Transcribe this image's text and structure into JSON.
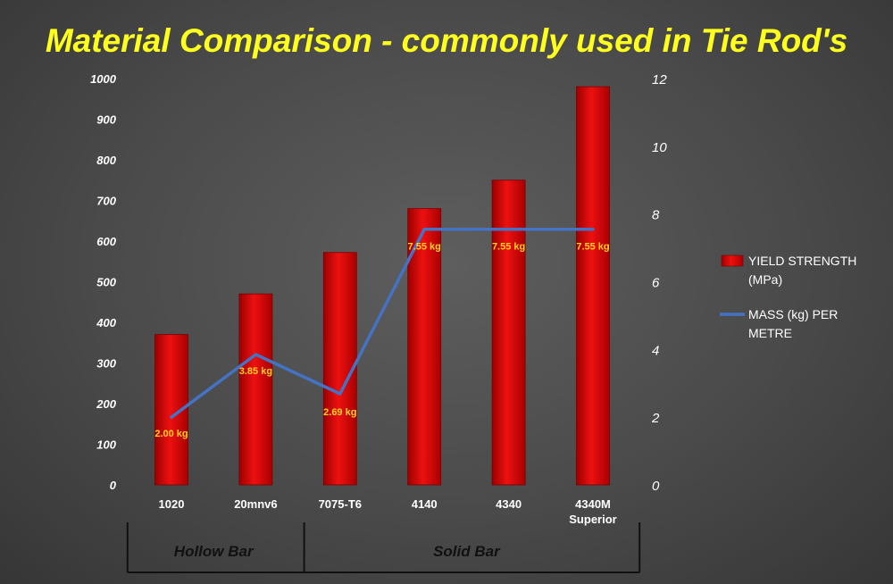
{
  "chart_data": {
    "type": "bar",
    "title": "Material Comparison - commonly used in Tie Rod's",
    "categories": [
      "1020",
      "20mnv6",
      "7075-T6",
      "4140",
      "4340",
      "4340M Superior"
    ],
    "category_lines": [
      [
        "1020"
      ],
      [
        "20mnv6"
      ],
      [
        "7075-T6"
      ],
      [
        "4140"
      ],
      [
        "4340"
      ],
      [
        "4340M",
        "Superior"
      ]
    ],
    "series": [
      {
        "name": "YIELD STRENGTH (MPa)",
        "legend_lines": [
          "YIELD STRENGTH",
          "(MPa)"
        ],
        "type": "bar",
        "axis": "left",
        "color": "#e00000",
        "values": [
          370,
          470,
          572,
          680,
          750,
          980
        ]
      },
      {
        "name": "MASS (kg) PER METRE",
        "legend_lines": [
          "MASS (kg) PER",
          "METRE"
        ],
        "type": "line",
        "axis": "right",
        "color": "#4472c4",
        "values": [
          2.0,
          3.85,
          2.69,
          7.55,
          7.55,
          7.55
        ],
        "data_labels": [
          "2.00 kg",
          "3.85 kg",
          "2.69 kg",
          "7.55 kg",
          "7.55 kg",
          "7.55 kg"
        ]
      }
    ],
    "y_left": {
      "ylim": [
        0,
        1000
      ],
      "ticks": [
        "0",
        "100",
        "200",
        "300",
        "400",
        "500",
        "600",
        "700",
        "800",
        "900",
        "1000"
      ]
    },
    "y_right": {
      "ylim": [
        0,
        12
      ],
      "ticks": [
        "0",
        "2",
        "4",
        "6",
        "8",
        "10",
        "12"
      ]
    },
    "groups": [
      {
        "label": "Hollow Bar",
        "from": 0,
        "to": 1
      },
      {
        "label": "Solid Bar",
        "from": 2,
        "to": 5
      }
    ],
    "legend_position": "right",
    "grid": false
  },
  "colors": {
    "title": "#ffff1e",
    "bar": "#e00000",
    "line": "#4472c4",
    "data_label": "#ffd21e"
  }
}
